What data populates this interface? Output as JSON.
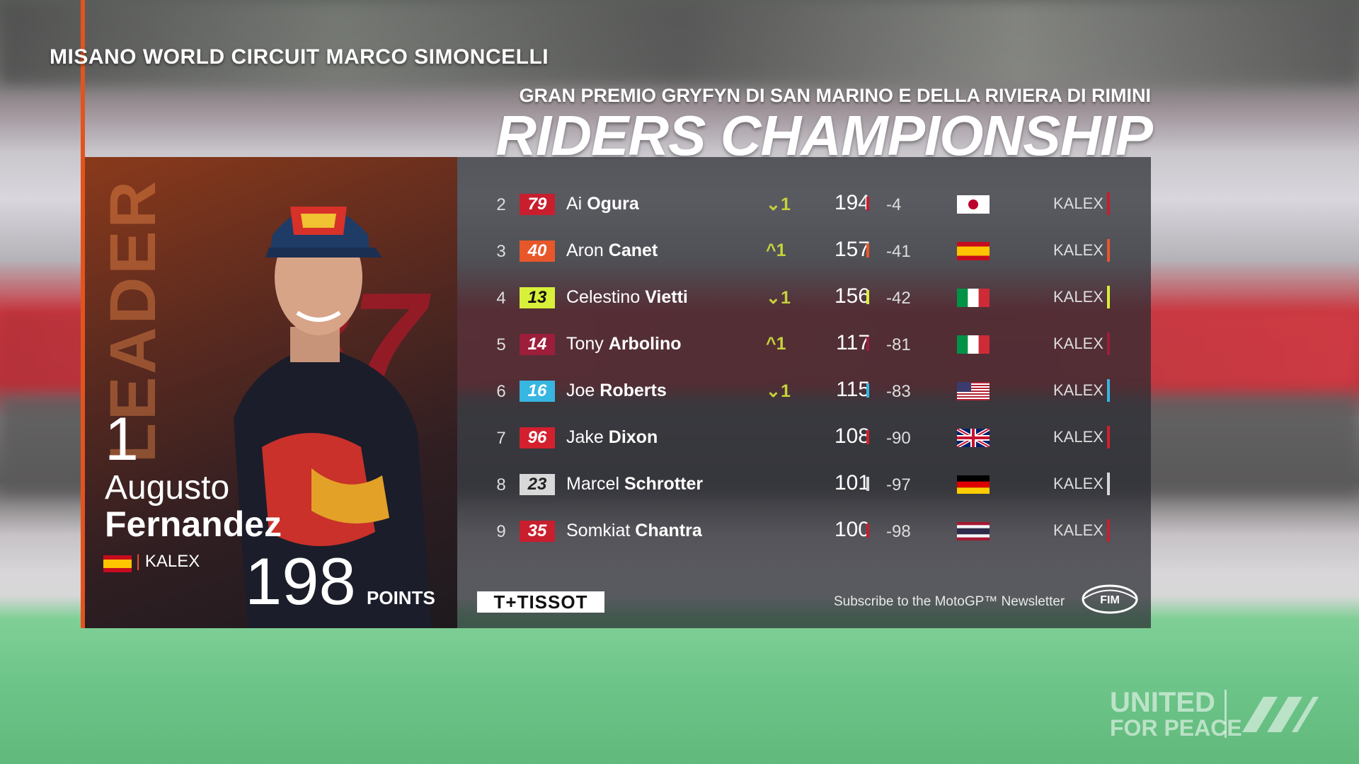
{
  "venue": "MISANO WORLD CIRCUIT MARCO SIMONCELLI",
  "grand_prix": "GRAN PREMIO GRYFYN DI SAN MARINO E DELLA RIVIERA DI RIMINI",
  "title": "RIDERS CHAMPIONSHIP",
  "leader": {
    "label": "LEADER",
    "position": "1",
    "first_name": "Augusto",
    "last_name": "Fernandez",
    "team": "KALEX",
    "points": "198",
    "points_label": "POINTS",
    "bg_number": "37",
    "flag": "spain-flag-icon"
  },
  "standings": [
    {
      "pos": "2",
      "number": "79",
      "first": "Ai",
      "last": "Ogura",
      "change": "⌄1",
      "points": "194",
      "gap": "-4",
      "team": "KALEX",
      "num_bg": "#c81e2e",
      "num_fg": "#ffffff",
      "accent": "#c81e2e",
      "flag": "japan"
    },
    {
      "pos": "3",
      "number": "40",
      "first": "Aron",
      "last": "Canet",
      "change": "^1",
      "points": "157",
      "gap": "-41",
      "team": "KALEX",
      "num_bg": "#e8572a",
      "num_fg": "#ffffff",
      "accent": "#e8572a",
      "flag": "spain"
    },
    {
      "pos": "4",
      "number": "13",
      "first": "Celestino",
      "last": "Vietti",
      "change": "⌄1",
      "points": "156",
      "gap": "-42",
      "team": "KALEX",
      "num_bg": "#d8f03a",
      "num_fg": "#111111",
      "accent": "#d8f03a",
      "flag": "italy"
    },
    {
      "pos": "5",
      "number": "14",
      "first": "Tony",
      "last": "Arbolino",
      "change": "^1",
      "points": "117",
      "gap": "-81",
      "team": "KALEX",
      "num_bg": "#9c1e3b",
      "num_fg": "#ffffff",
      "accent": "#9c1e3b",
      "flag": "italy"
    },
    {
      "pos": "6",
      "number": "16",
      "first": "Joe",
      "last": "Roberts",
      "change": "⌄1",
      "points": "115",
      "gap": "-83",
      "team": "KALEX",
      "num_bg": "#36b6e0",
      "num_fg": "#ffffff",
      "accent": "#36b6e0",
      "flag": "usa"
    },
    {
      "pos": "7",
      "number": "96",
      "first": "Jake",
      "last": "Dixon",
      "change": "",
      "points": "108",
      "gap": "-90",
      "team": "KALEX",
      "num_bg": "#d3202e",
      "num_fg": "#ffffff",
      "accent": "#d3202e",
      "flag": "uk"
    },
    {
      "pos": "8",
      "number": "23",
      "first": "Marcel",
      "last": "Schrotter",
      "change": "",
      "points": "101",
      "gap": "-97",
      "team": "KALEX",
      "num_bg": "#d8d8d8",
      "num_fg": "#222222",
      "accent": "#d8d8d8",
      "flag": "germany"
    },
    {
      "pos": "9",
      "number": "35",
      "first": "Somkiat",
      "last": "Chantra",
      "change": "",
      "points": "100",
      "gap": "-98",
      "team": "KALEX",
      "num_bg": "#c81e2e",
      "num_fg": "#ffffff",
      "accent": "#c81e2e",
      "flag": "thailand"
    }
  ],
  "footer": {
    "sponsor": "T+TISSOT",
    "newsletter": "Subscribe to the MotoGP™ Newsletter",
    "fim_logo": "FIM"
  },
  "watermark": {
    "line1": "UNITED",
    "line2": "FOR PEACE",
    "logo": "motogp-logo-icon"
  }
}
